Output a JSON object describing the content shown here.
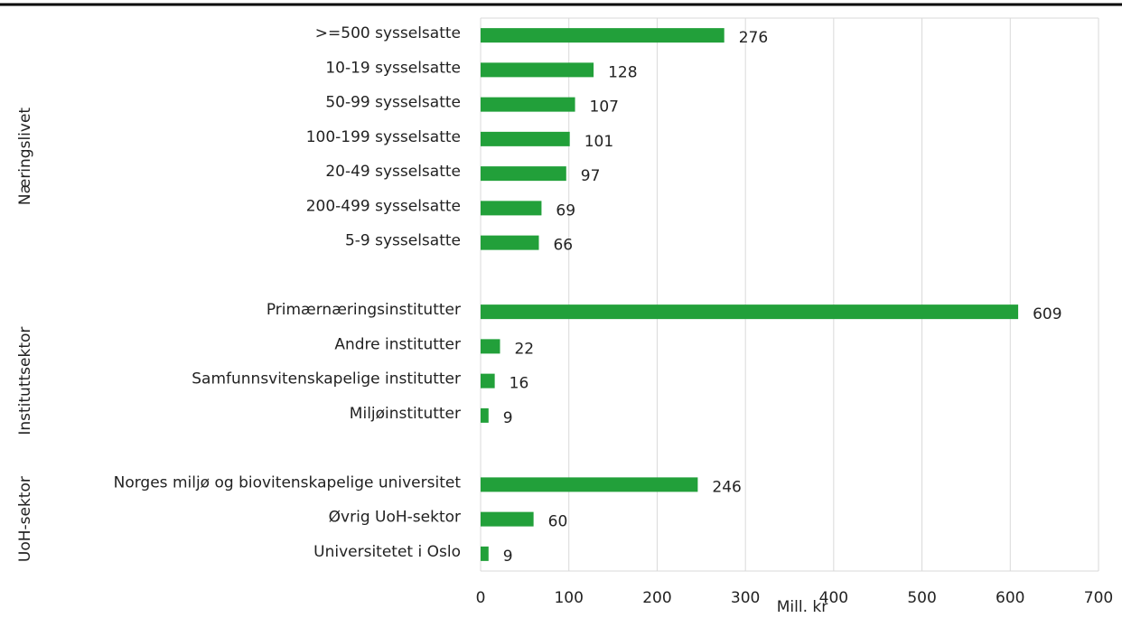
{
  "chart_data": {
    "type": "bar",
    "orientation": "horizontal",
    "color": "#22a03a",
    "x_label": "Mill. kr",
    "xlim": [
      0,
      700
    ],
    "xticks": [
      0,
      100,
      200,
      300,
      400,
      500,
      600,
      700
    ],
    "grid": true,
    "groups": [
      {
        "name": "Næringslivet",
        "categories": [
          ">=500 sysselsatte",
          "10-19 sysselsatte",
          "50-99 sysselsatte",
          "100-199 sysselsatte",
          "20-49 sysselsatte",
          "200-499 sysselsatte",
          "5-9 sysselsatte"
        ],
        "values": [
          276,
          128,
          107,
          101,
          97,
          69,
          66
        ]
      },
      {
        "name": "Instituttsektor",
        "categories": [
          "Primærnæringsinstitutter",
          "Andre institutter",
          "Samfunnsvitenskapelige institutter",
          "Miljøinstitutter"
        ],
        "values": [
          609,
          22,
          16,
          9
        ]
      },
      {
        "name": "UoH-sektor",
        "categories": [
          "Norges miljø og biovitenskapelige universitet",
          "Øvrig UoH-sektor",
          "Universitetet i Oslo"
        ],
        "values": [
          246,
          60,
          9
        ]
      }
    ]
  }
}
